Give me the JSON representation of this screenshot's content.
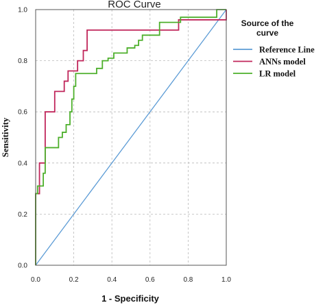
{
  "chart_data": {
    "type": "line",
    "title": "ROC Curve",
    "xlabel": "1 - Specificity",
    "ylabel": "Sensitivity",
    "xlim": [
      0,
      1
    ],
    "ylim": [
      0,
      1
    ],
    "xticks": [
      "0.0",
      "0.2",
      "0.4",
      "0.6",
      "0.8",
      "1.0"
    ],
    "yticks": [
      "0.0",
      "0.2",
      "0.4",
      "0.6",
      "0.8",
      "1.0"
    ],
    "grid": "dashed",
    "legend": {
      "title": "Source of the curve",
      "placement": "right",
      "entries": [
        "Reference Line",
        "ANNs model",
        "LR model"
      ]
    },
    "series": [
      {
        "name": "Reference Line",
        "color": "#5b9bd5",
        "points": [
          [
            0,
            0
          ],
          [
            1,
            1
          ]
        ]
      },
      {
        "name": "ANNs model",
        "color": "#c0255a",
        "points": [
          [
            0,
            0
          ],
          [
            0,
            0.28
          ],
          [
            0.02,
            0.28
          ],
          [
            0.02,
            0.4
          ],
          [
            0.05,
            0.4
          ],
          [
            0.05,
            0.6
          ],
          [
            0.1,
            0.6
          ],
          [
            0.1,
            0.68
          ],
          [
            0.15,
            0.68
          ],
          [
            0.15,
            0.72
          ],
          [
            0.17,
            0.72
          ],
          [
            0.17,
            0.76
          ],
          [
            0.22,
            0.76
          ],
          [
            0.22,
            0.8
          ],
          [
            0.25,
            0.8
          ],
          [
            0.25,
            0.84
          ],
          [
            0.27,
            0.84
          ],
          [
            0.27,
            0.92
          ],
          [
            0.75,
            0.92
          ],
          [
            0.75,
            0.96
          ],
          [
            1.0,
            0.96
          ],
          [
            1.0,
            1.0
          ]
        ]
      },
      {
        "name": "LR model",
        "color": "#4caf2a",
        "points": [
          [
            0,
            0
          ],
          [
            0,
            0.28
          ],
          [
            0.01,
            0.28
          ],
          [
            0.01,
            0.31
          ],
          [
            0.04,
            0.31
          ],
          [
            0.04,
            0.36
          ],
          [
            0.05,
            0.36
          ],
          [
            0.05,
            0.46
          ],
          [
            0.12,
            0.46
          ],
          [
            0.12,
            0.5
          ],
          [
            0.14,
            0.5
          ],
          [
            0.14,
            0.52
          ],
          [
            0.16,
            0.52
          ],
          [
            0.16,
            0.55
          ],
          [
            0.18,
            0.55
          ],
          [
            0.18,
            0.6
          ],
          [
            0.19,
            0.6
          ],
          [
            0.19,
            0.65
          ],
          [
            0.2,
            0.65
          ],
          [
            0.2,
            0.7
          ],
          [
            0.21,
            0.7
          ],
          [
            0.21,
            0.75
          ],
          [
            0.32,
            0.75
          ],
          [
            0.32,
            0.77
          ],
          [
            0.35,
            0.77
          ],
          [
            0.35,
            0.8
          ],
          [
            0.38,
            0.8
          ],
          [
            0.38,
            0.81
          ],
          [
            0.41,
            0.81
          ],
          [
            0.41,
            0.83
          ],
          [
            0.48,
            0.83
          ],
          [
            0.48,
            0.85
          ],
          [
            0.52,
            0.85
          ],
          [
            0.52,
            0.86
          ],
          [
            0.54,
            0.86
          ],
          [
            0.54,
            0.88
          ],
          [
            0.56,
            0.88
          ],
          [
            0.56,
            0.9
          ],
          [
            0.65,
            0.9
          ],
          [
            0.65,
            0.95
          ],
          [
            0.76,
            0.95
          ],
          [
            0.76,
            0.97
          ],
          [
            0.95,
            0.97
          ],
          [
            0.95,
            1.0
          ],
          [
            1.0,
            1.0
          ]
        ]
      }
    ]
  }
}
